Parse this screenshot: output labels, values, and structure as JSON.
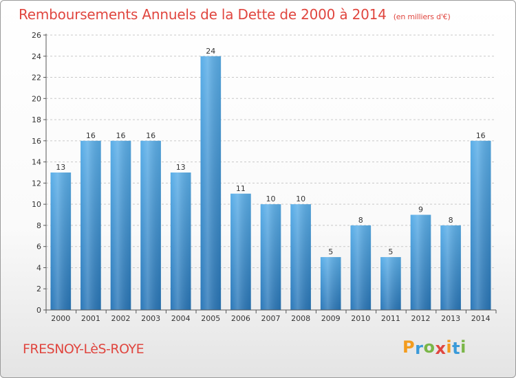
{
  "page": {
    "title": "Remboursements Annuels de la Dette de 2000 à 2014",
    "unit": "(en milliers d'€)",
    "city": "FRESNOY-LèS-ROYE",
    "logo": "Proxiti",
    "logo_letters": [
      {
        "ch": "P",
        "color": "#f39c1d"
      },
      {
        "ch": "r",
        "color": "#3a9ad9"
      },
      {
        "ch": "o",
        "color": "#7ab648"
      },
      {
        "ch": "x",
        "color": "#e0463f"
      },
      {
        "ch": "i",
        "color": "#f39c1d"
      },
      {
        "ch": "t",
        "color": "#3a9ad9"
      },
      {
        "ch": "i",
        "color": "#7ab648"
      }
    ]
  },
  "chart_data": {
    "type": "bar",
    "title": "Remboursements Annuels de la Dette de 2000 à 2014",
    "unit": "(en milliers d'€)",
    "categories": [
      "2000",
      "2001",
      "2002",
      "2003",
      "2004",
      "2005",
      "2006",
      "2007",
      "2008",
      "2009",
      "2010",
      "2011",
      "2012",
      "2013",
      "2014"
    ],
    "values": [
      13,
      16,
      16,
      16,
      13,
      24,
      11,
      10,
      10,
      5,
      8,
      5,
      9,
      8,
      16
    ],
    "ylim": [
      0,
      26
    ],
    "yticks": [
      0,
      2,
      4,
      6,
      8,
      10,
      12,
      14,
      16,
      18,
      20,
      22,
      24,
      26
    ],
    "grid": true,
    "bar_color_top": "#5aaee8",
    "bar_color_bottom": "#2a77b8"
  }
}
